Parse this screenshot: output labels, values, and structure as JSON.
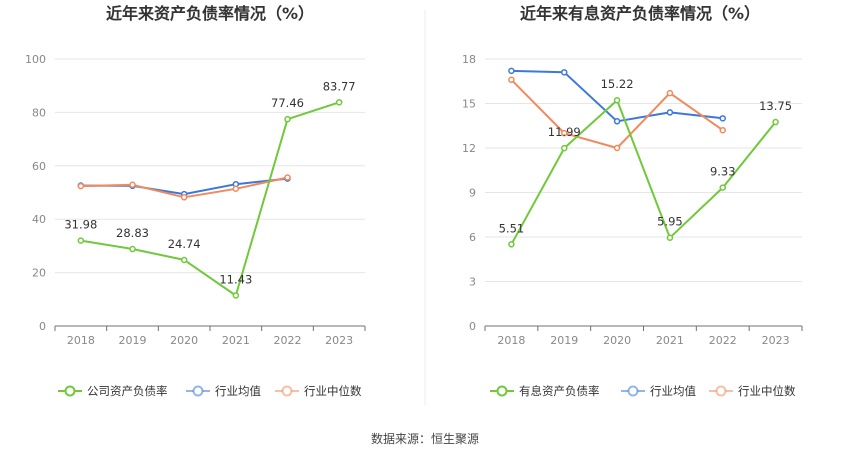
{
  "source": "数据来源：恒生聚源",
  "chart_data": [
    {
      "type": "line",
      "title": "近年来资产负债率情况（%）",
      "x": [
        "2018",
        "2019",
        "2020",
        "2021",
        "2022",
        "2023"
      ],
      "ylim": [
        0,
        100
      ],
      "yticks": [
        0,
        20,
        40,
        60,
        80,
        100
      ],
      "grid": true,
      "legend": "bottom",
      "series": [
        {
          "name": "公司资产负债率",
          "color": "#6fc93a",
          "values": [
            31.98,
            28.83,
            24.74,
            11.43,
            77.46,
            83.77
          ],
          "labels": [
            "31.98",
            "28.83",
            "24.74",
            "11.43",
            "77.46",
            "83.77"
          ]
        },
        {
          "name": "行业均值",
          "color": "#3b78d8",
          "values": [
            52.6,
            52.5,
            49.4,
            53.1,
            55.2,
            null
          ]
        },
        {
          "name": "行业中位数",
          "color": "#f08a5d",
          "values": [
            52.4,
            52.9,
            48.2,
            51.4,
            55.6,
            null
          ]
        }
      ]
    },
    {
      "type": "line",
      "title": "近年来有息资产负债率情况（%）",
      "x": [
        "2018",
        "2019",
        "2020",
        "2021",
        "2022",
        "2023"
      ],
      "ylim": [
        0,
        18
      ],
      "yticks": [
        0,
        3,
        6,
        9,
        12,
        15,
        18
      ],
      "grid": true,
      "legend": "bottom",
      "series": [
        {
          "name": "有息资产负债率",
          "color": "#6fc93a",
          "values": [
            5.51,
            11.99,
            15.22,
            5.95,
            9.33,
            13.75
          ],
          "labels": [
            "5.51",
            "11.99",
            "15.22",
            "5.95",
            "9.33",
            "13.75"
          ]
        },
        {
          "name": "行业均值",
          "color": "#3b78d8",
          "values": [
            17.2,
            17.1,
            13.8,
            14.4,
            14.0,
            null
          ]
        },
        {
          "name": "行业中位数",
          "color": "#f08a5d",
          "values": [
            16.6,
            13.0,
            12.0,
            15.7,
            13.2,
            null
          ]
        }
      ]
    }
  ]
}
